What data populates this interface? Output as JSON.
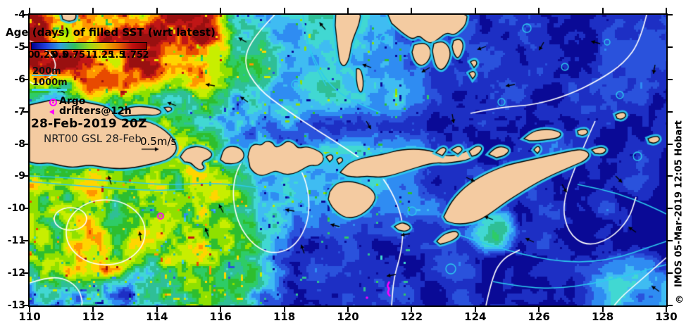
{
  "header": {
    "title": "Age (days) of filled SST (wrt latest)"
  },
  "colorbar": {
    "labels": [
      "0",
      "0.25",
      "0.5",
      "0.75",
      "1",
      "1.25",
      "1.5",
      "1.75",
      "2"
    ],
    "gradient": [
      "#000090",
      "#2040E0",
      "#30A0E0",
      "#30C060",
      "#98D818",
      "#E8C000",
      "#E87000",
      "#C01010",
      "#8E0000"
    ],
    "range": [
      0,
      2
    ]
  },
  "depth_contours": {
    "label_200": "200m",
    "label_1000": "1000m",
    "color": "#3FD8F8"
  },
  "observations": {
    "argo_label": "Argo",
    "drifters_label": "drifters@12h",
    "marker_color": "#FF00FF"
  },
  "timestamp": {
    "analysis": "28-Feb-2019 20Z",
    "model": "NRT00 GSL 28-Feb"
  },
  "velocity_scale": {
    "label": "0.5m/s"
  },
  "credit": {
    "copyright": "©",
    "text": "IMOS 05-Mar-2019 12:05 Hobart"
  },
  "axes": {
    "x_ticks": [
      "110",
      "112",
      "114",
      "116",
      "118",
      "120",
      "122",
      "124",
      "126",
      "128",
      "130"
    ],
    "y_ticks": [
      "-4",
      "-5",
      "-6",
      "-7",
      "-8",
      "-9",
      "-10",
      "-11",
      "-12",
      "-13"
    ],
    "x_range": [
      110,
      130
    ],
    "y_range": [
      -4,
      -13
    ]
  },
  "map": {
    "land_color": "#F4CBA1",
    "coast_color": "#000000",
    "contour_white": "#FFFFFF",
    "contour_cyan": "#2DCCEE",
    "arrow_color": "#000000",
    "ocean_palette": [
      [
        0.1,
        "#0A0A96"
      ],
      [
        0.22,
        "#1D2FC4"
      ],
      [
        0.34,
        "#2A52DC"
      ],
      [
        0.46,
        "#2F8CF2"
      ],
      [
        0.56,
        "#3FBCF2"
      ],
      [
        0.66,
        "#41D8D2"
      ],
      [
        0.78,
        "#2FBF96"
      ],
      [
        0.9,
        "#2ECC66"
      ],
      [
        1.02,
        "#2EBE2E"
      ],
      [
        1.16,
        "#8FE000"
      ],
      [
        1.32,
        "#C8EE00"
      ],
      [
        1.48,
        "#FFD500"
      ],
      [
        1.62,
        "#FF9600"
      ],
      [
        1.76,
        "#E84A00"
      ],
      [
        1.88,
        "#C01616"
      ],
      [
        99,
        "#991010"
      ]
    ]
  },
  "chart_data": {
    "type": "heatmap",
    "title": "Age (days) of filled SST (wrt latest)",
    "x_range": [
      110,
      130
    ],
    "y_range": [
      -13,
      -4
    ],
    "x_tick_values": [
      110,
      112,
      114,
      116,
      118,
      120,
      122,
      124,
      126,
      128,
      130
    ],
    "y_tick_values": [
      -4,
      -5,
      -6,
      -7,
      -8,
      -9,
      -10,
      -11,
      -12,
      -13
    ],
    "colorbar_tick_values": [
      0,
      0.25,
      0.5,
      0.75,
      1,
      1.25,
      1.5,
      1.75,
      2
    ],
    "legend_entries": [
      "200m",
      "1000m",
      "Argo",
      "drifters@12h",
      "0.5m/s"
    ],
    "annotations": [
      "28-Feb-2019 20Z",
      "NRT00 GSL 28-Feb",
      "© IMOS 05-Mar-2019 12:05 Hobart"
    ]
  }
}
